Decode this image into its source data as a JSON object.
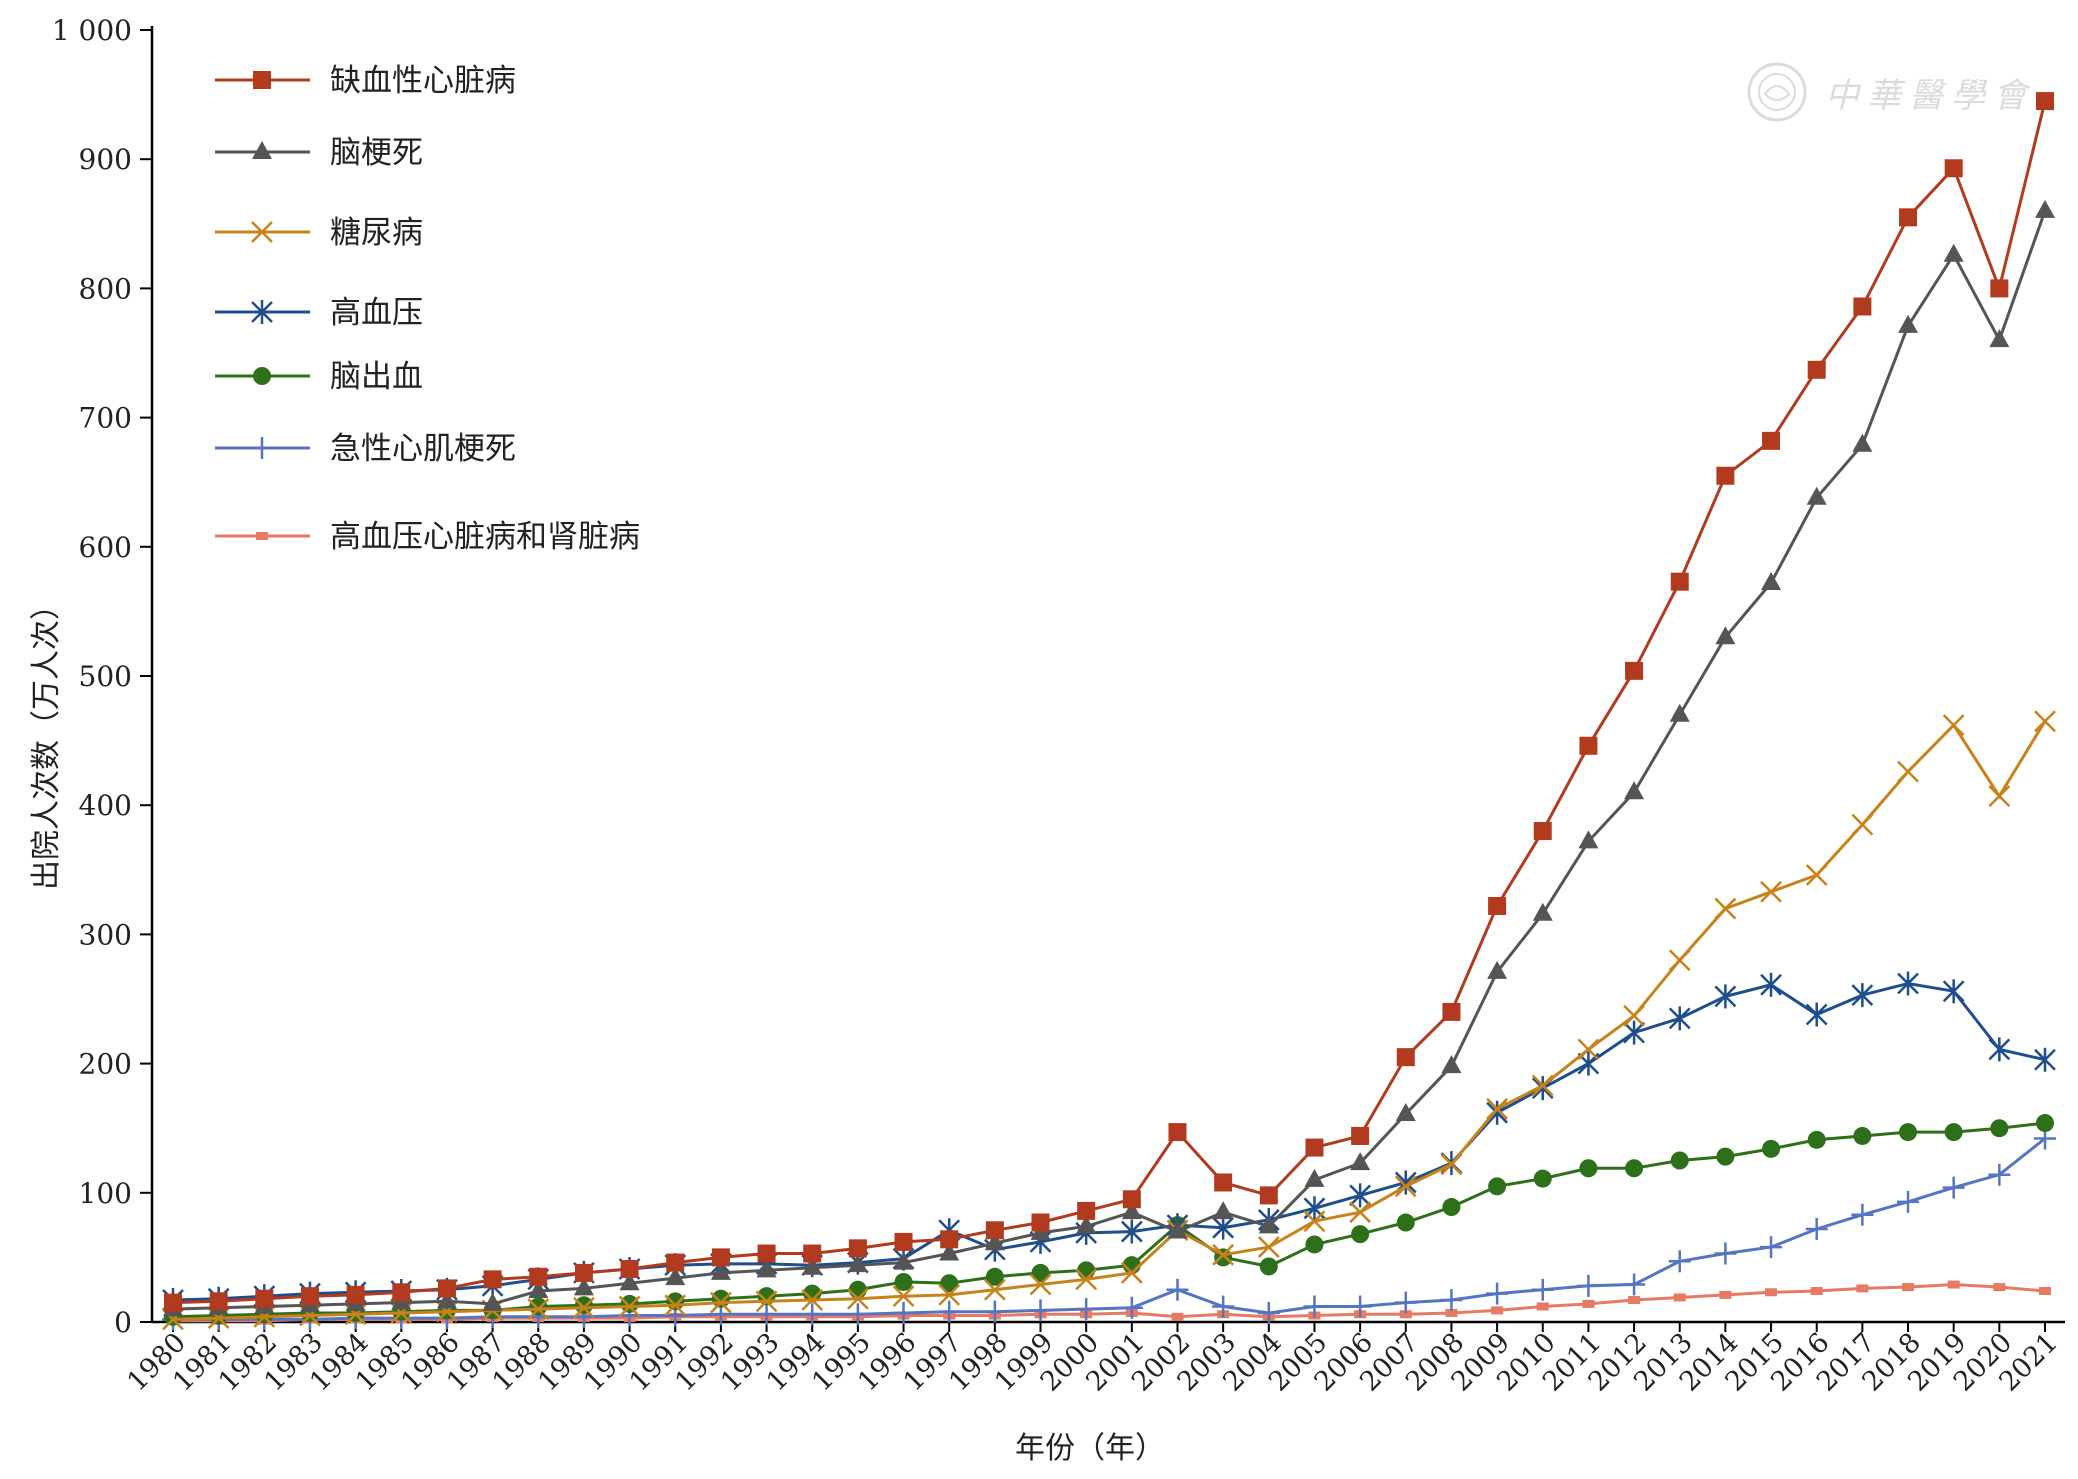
{
  "chart_data": {
    "type": "line",
    "title": "",
    "xlabel": "年份（年）",
    "ylabel": "出院人次数（万人次）",
    "ylim": [
      0,
      1000
    ],
    "yticks": [
      "0",
      "100",
      "200",
      "300",
      "400",
      "500",
      "600",
      "700",
      "800",
      "900",
      "1 000"
    ],
    "ytick_values": [
      0,
      100,
      200,
      300,
      400,
      500,
      600,
      700,
      800,
      900,
      1000
    ],
    "x": [
      "1980",
      "1981",
      "1982",
      "1983",
      "1984",
      "1985",
      "1986",
      "1987",
      "1988",
      "1989",
      "1990",
      "1991",
      "1992",
      "1993",
      "1994",
      "1995",
      "1996",
      "1997",
      "1998",
      "1999",
      "2000",
      "2001",
      "2002",
      "2003",
      "2004",
      "2005",
      "2006",
      "2007",
      "2008",
      "2009",
      "2010",
      "2011",
      "2012",
      "2013",
      "2014",
      "2015",
      "2016",
      "2017",
      "2018",
      "2019",
      "2020",
      "2021"
    ],
    "legend_position": "top-left",
    "grid": false,
    "series": [
      {
        "name": "缺血性心脏病",
        "color": "#b23a1e",
        "marker": "square",
        "values": [
          15,
          16,
          18,
          20,
          21,
          23,
          26,
          33,
          35,
          38,
          41,
          46,
          50,
          53,
          53,
          57,
          62,
          64,
          71,
          77,
          86,
          95,
          147,
          108,
          98,
          135,
          144,
          205,
          240,
          322,
          380,
          446,
          504,
          573,
          655,
          682,
          737,
          786,
          855,
          893,
          800,
          945
        ]
      },
      {
        "name": "脑梗死",
        "color": "#555555",
        "marker": "triangle",
        "values": [
          10,
          11,
          12,
          13,
          14,
          15,
          16,
          14,
          24,
          26,
          30,
          34,
          38,
          40,
          42,
          44,
          46,
          53,
          61,
          69,
          74,
          85,
          70,
          85,
          74,
          110,
          123,
          161,
          198,
          271,
          316,
          372,
          410,
          470,
          530,
          572,
          638,
          679,
          771,
          826,
          760,
          860
        ]
      },
      {
        "name": "糖尿病",
        "color": "#c8821a",
        "marker": "x",
        "values": [
          2,
          3,
          4,
          5,
          6,
          7,
          8,
          9,
          10,
          11,
          12,
          13,
          15,
          16,
          17,
          18,
          20,
          21,
          25,
          29,
          33,
          38,
          71,
          52,
          58,
          78,
          85,
          105,
          122,
          165,
          183,
          211,
          237,
          280,
          320,
          333,
          346,
          385,
          426,
          462,
          407,
          465
        ]
      },
      {
        "name": "高血压",
        "color": "#1f4e8c",
        "marker": "asterisk",
        "values": [
          17,
          18,
          20,
          22,
          23,
          24,
          25,
          28,
          33,
          38,
          41,
          44,
          45,
          45,
          44,
          46,
          49,
          71,
          56,
          62,
          69,
          70,
          75,
          73,
          79,
          88,
          98,
          108,
          123,
          162,
          181,
          200,
          224,
          235,
          252,
          261,
          238,
          253,
          262,
          256,
          211,
          203
        ]
      },
      {
        "name": "脑出血",
        "color": "#2e6f1a",
        "marker": "circle",
        "values": [
          4,
          5,
          6,
          7,
          7,
          8,
          9,
          9,
          12,
          13,
          14,
          16,
          18,
          20,
          22,
          25,
          31,
          30,
          35,
          38,
          40,
          44,
          75,
          50,
          43,
          60,
          68,
          77,
          89,
          105,
          111,
          119,
          119,
          125,
          128,
          134,
          141,
          144,
          147,
          147,
          150,
          154
        ]
      },
      {
        "name": "急性心肌梗死",
        "color": "#5575c2",
        "marker": "plus",
        "values": [
          2,
          2,
          2,
          2,
          3,
          3,
          3,
          4,
          4,
          4,
          5,
          5,
          6,
          6,
          6,
          6,
          7,
          8,
          8,
          9,
          10,
          11,
          25,
          12,
          7,
          12,
          12,
          15,
          17,
          22,
          25,
          28,
          29,
          47,
          53,
          58,
          72,
          83,
          93,
          104,
          114,
          142
        ]
      },
      {
        "name": "高血压心脏病和肾脏病",
        "color": "#e67a62",
        "marker": "small-square",
        "values": [
          1,
          1,
          1,
          2,
          2,
          2,
          2,
          3,
          3,
          3,
          3,
          4,
          4,
          4,
          4,
          4,
          5,
          5,
          5,
          6,
          6,
          7,
          4,
          6,
          4,
          5,
          6,
          6,
          7,
          9,
          12,
          14,
          17,
          19,
          21,
          23,
          24,
          26,
          27,
          29,
          27,
          24
        ]
      }
    ]
  },
  "watermark": {
    "text": "中華醫學會",
    "icon": "society-seal-icon"
  }
}
